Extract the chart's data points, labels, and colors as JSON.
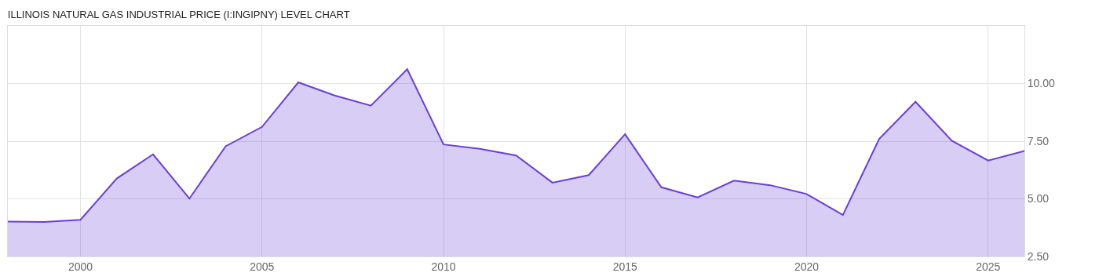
{
  "chart_data": {
    "type": "area",
    "title": "ILLINOIS NATURAL GAS INDUSTRIAL PRICE (I:INGIPNY) LEVEL CHART",
    "x": [
      1998,
      1999,
      2000,
      2001,
      2002,
      2003,
      2004,
      2005,
      2006,
      2007,
      2008,
      2009,
      2010,
      2011,
      2012,
      2013,
      2014,
      2015,
      2016,
      2017,
      2018,
      2019,
      2020,
      2021,
      2022,
      2023,
      2024,
      2025,
      2026
    ],
    "series": [
      {
        "color": "#6a3fd4",
        "values": [
          4.01,
          4.0,
          4.09,
          5.88,
          6.93,
          5.01,
          7.28,
          8.12,
          10.05,
          9.48,
          9.04,
          10.62,
          7.36,
          7.17,
          6.88,
          5.7,
          6.03,
          7.8,
          5.5,
          5.06,
          5.79,
          5.59,
          5.21,
          4.3,
          7.6,
          9.21,
          7.52,
          6.66,
          7.08
        ]
      }
    ],
    "xlim": [
      1998,
      2026
    ],
    "xticks": [
      2000,
      2005,
      2010,
      2015,
      2020,
      2025
    ],
    "ylim": [
      2.5,
      12.5
    ],
    "yticks": [
      {
        "value": 2.5,
        "label": "2.50"
      },
      {
        "value": 5,
        "label": "5.00"
      },
      {
        "value": 7.5,
        "label": "7.50"
      },
      {
        "value": 10,
        "label": "10.00"
      }
    ],
    "grid": true,
    "marker": "none",
    "line_style": "solid"
  }
}
